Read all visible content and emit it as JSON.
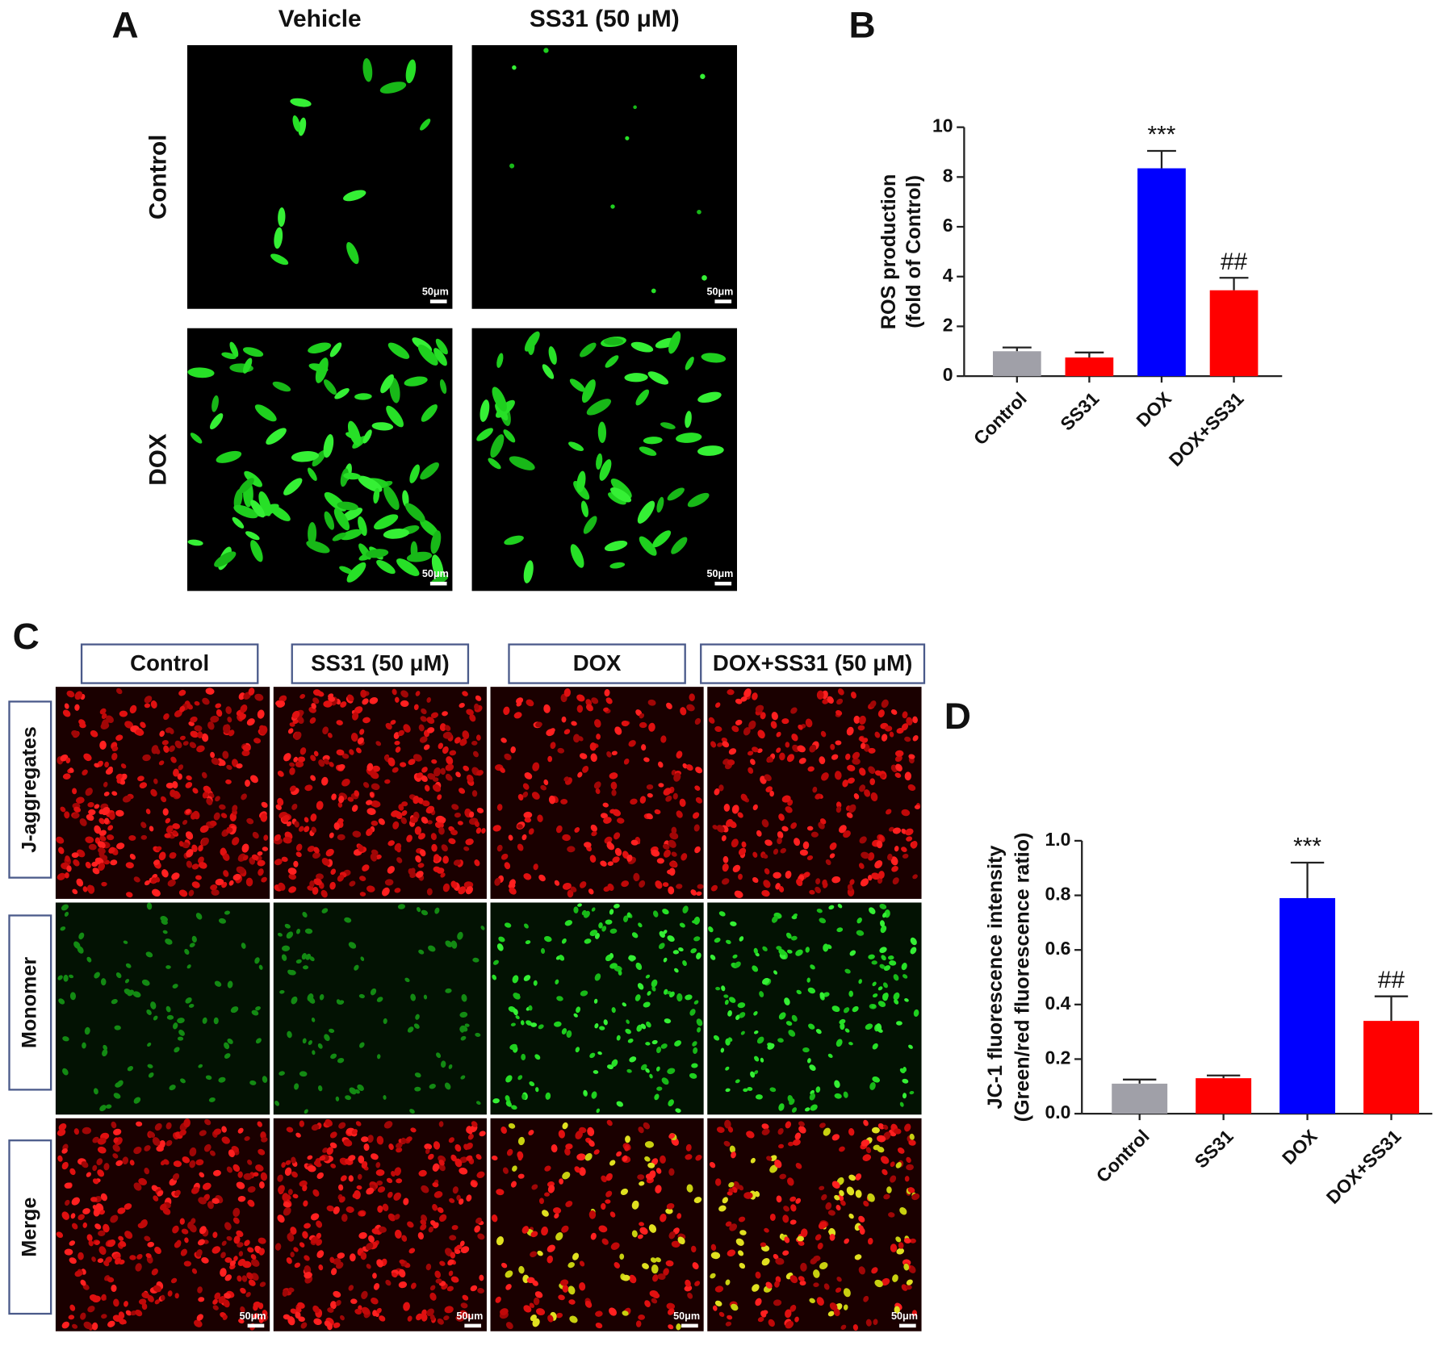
{
  "panel_labels": [
    "A",
    "B",
    "C",
    "D"
  ],
  "panel_a": {
    "columns": [
      "Vehicle",
      "SS31 (50 μM)"
    ],
    "rows": [
      "Control",
      "DOX"
    ],
    "scale_bar": "50μm"
  },
  "panel_c": {
    "columns": [
      "Control",
      "SS31 (50 μM)",
      "DOX",
      "DOX+SS31 (50 μM)"
    ],
    "rows": [
      "J-aggregates",
      "Monomer",
      "Merge"
    ],
    "scale_bar": "50μm"
  },
  "chart_data": [
    {
      "type": "bar",
      "ylabel": [
        "ROS production",
        "(fold of Control)"
      ],
      "categories": [
        "Control",
        "SS31",
        "DOX",
        "DOX+SS31"
      ],
      "values": [
        1.0,
        0.75,
        8.35,
        3.45
      ],
      "errors": [
        0.15,
        0.2,
        0.7,
        0.5
      ],
      "colors": [
        "#a0a0a8",
        "#ff0000",
        "#0000ff",
        "#ff0000"
      ],
      "annotations": [
        {
          "category": "DOX",
          "text": "***"
        },
        {
          "category": "DOX+SS31",
          "text": "##"
        }
      ],
      "ylim": [
        0,
        10
      ],
      "yticks": [
        0,
        2,
        4,
        6,
        8,
        10
      ]
    },
    {
      "type": "bar",
      "ylabel": [
        "JC-1  fluorescence intensity",
        "(Green/red fluorescence ratio)"
      ],
      "categories": [
        "Control",
        "SS31",
        "DOX",
        "DOX+SS31"
      ],
      "values": [
        0.11,
        0.13,
        0.79,
        0.34
      ],
      "errors": [
        0.015,
        0.01,
        0.13,
        0.09
      ],
      "colors": [
        "#a0a0a8",
        "#ff0000",
        "#0000ff",
        "#ff0000"
      ],
      "annotations": [
        {
          "category": "DOX",
          "text": "***"
        },
        {
          "category": "DOX+SS31",
          "text": "##"
        }
      ],
      "ylim": [
        0,
        1
      ],
      "yticks": [
        {
          "value": 0,
          "label": "0.0"
        },
        0.2,
        0.4,
        0.6,
        0.8,
        {
          "value": 1,
          "label": "1.0"
        }
      ]
    }
  ]
}
